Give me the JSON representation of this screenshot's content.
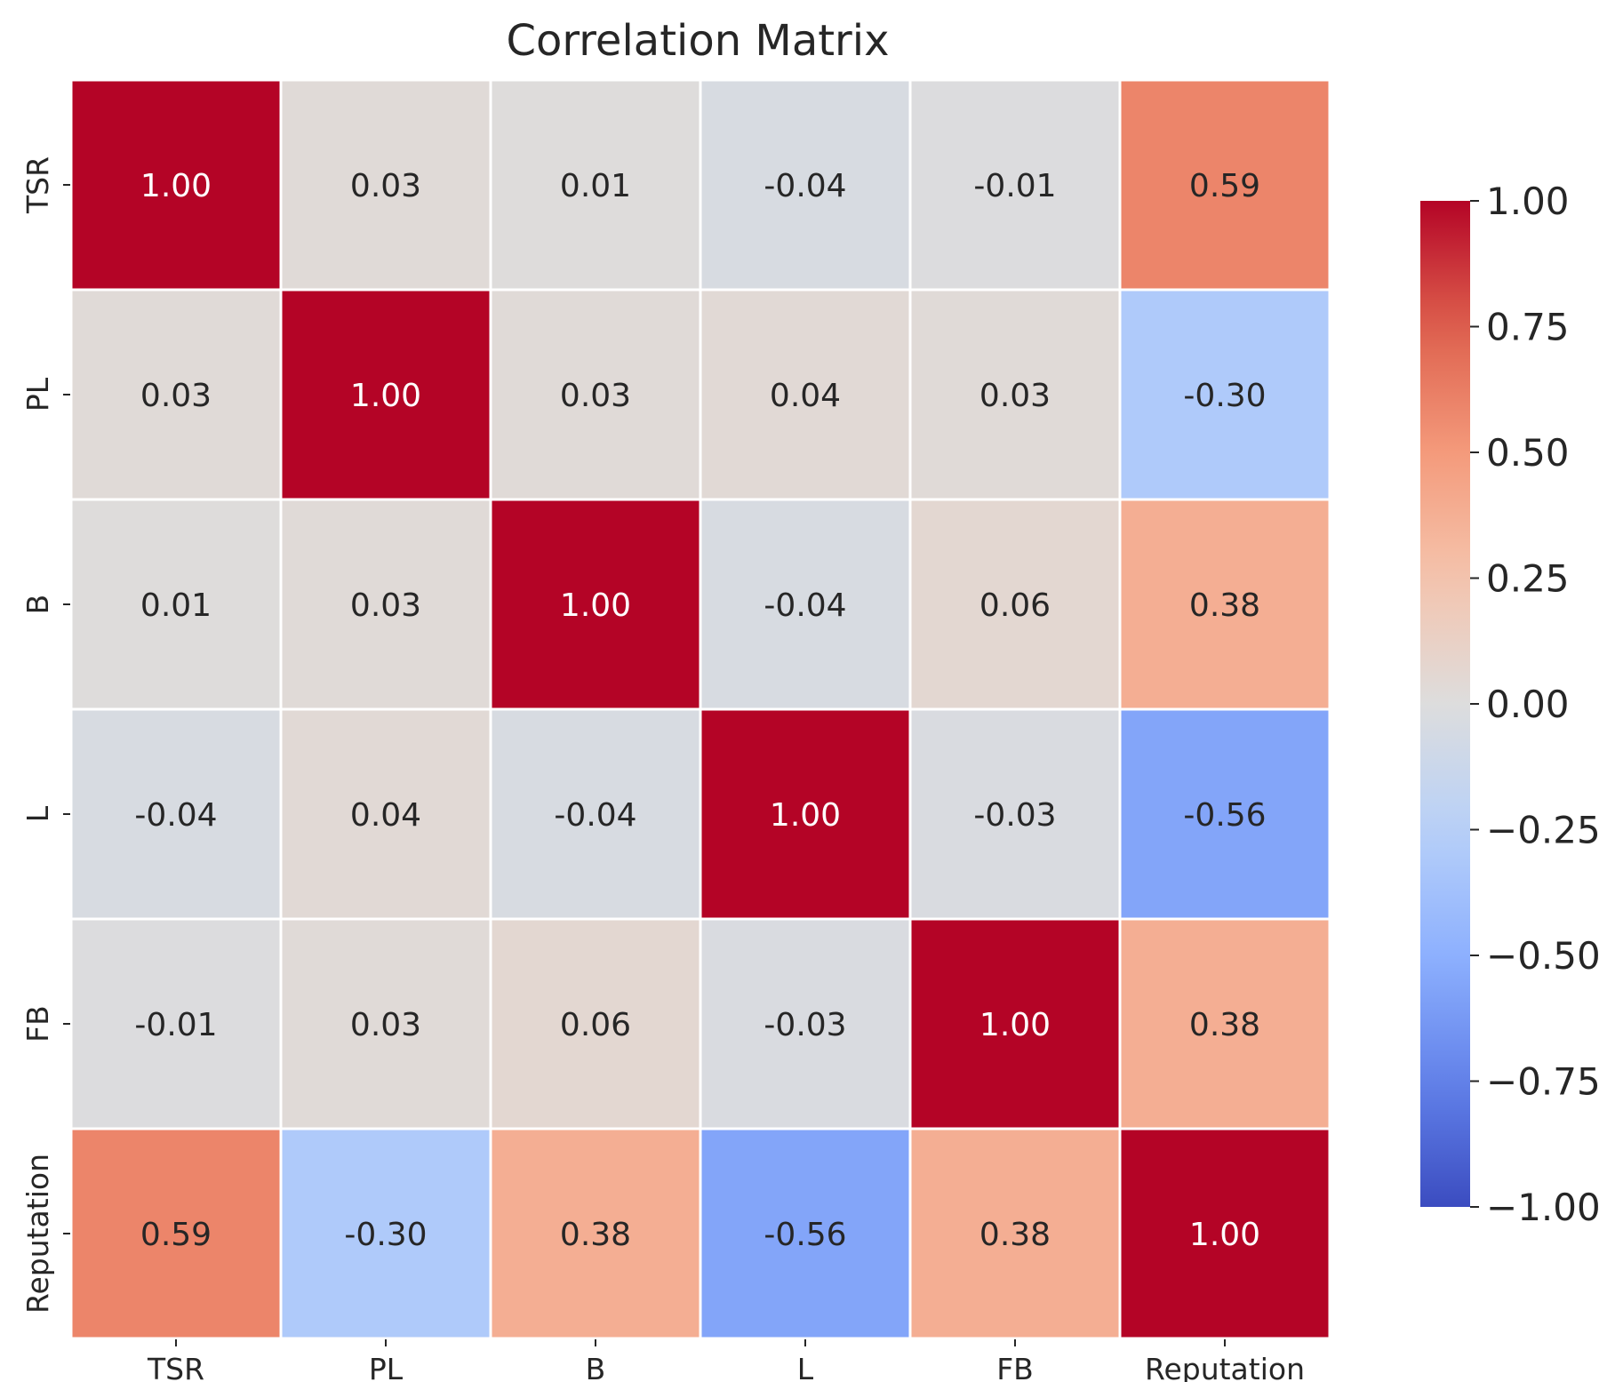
{
  "chart_data": {
    "type": "heatmap",
    "title": "Correlation Matrix",
    "xlabel": "",
    "ylabel": "",
    "x_categories": [
      "TSR",
      "PL",
      "B",
      "L",
      "FB",
      "Reputation"
    ],
    "y_categories": [
      "TSR",
      "PL",
      "B",
      "L",
      "FB",
      "Reputation"
    ],
    "values": [
      [
        1.0,
        0.03,
        0.01,
        -0.04,
        -0.01,
        0.59
      ],
      [
        0.03,
        1.0,
        0.03,
        0.04,
        0.03,
        -0.3
      ],
      [
        0.01,
        0.03,
        1.0,
        -0.04,
        0.06,
        0.38
      ],
      [
        -0.04,
        0.04,
        -0.04,
        1.0,
        -0.03,
        -0.56
      ],
      [
        -0.01,
        0.03,
        0.06,
        -0.03,
        1.0,
        0.38
      ],
      [
        0.59,
        -0.3,
        0.38,
        -0.56,
        0.38,
        1.0
      ]
    ],
    "annotation_format": "0.00",
    "colormap": "coolwarm",
    "vmin": -1.0,
    "vmax": 1.0,
    "colorbar": {
      "ticks": [
        1.0,
        0.75,
        0.5,
        0.25,
        0.0,
        -0.25,
        -0.5,
        -0.75,
        -1.0
      ],
      "tick_labels": [
        "1.00",
        "0.75",
        "0.50",
        "0.25",
        "0.00",
        "−0.25",
        "−0.50",
        "−0.75",
        "−1.00"
      ]
    },
    "colors": {
      "cell_border": "#ffffff",
      "dark_text": "#262626",
      "light_text": "#ffffff"
    }
  }
}
